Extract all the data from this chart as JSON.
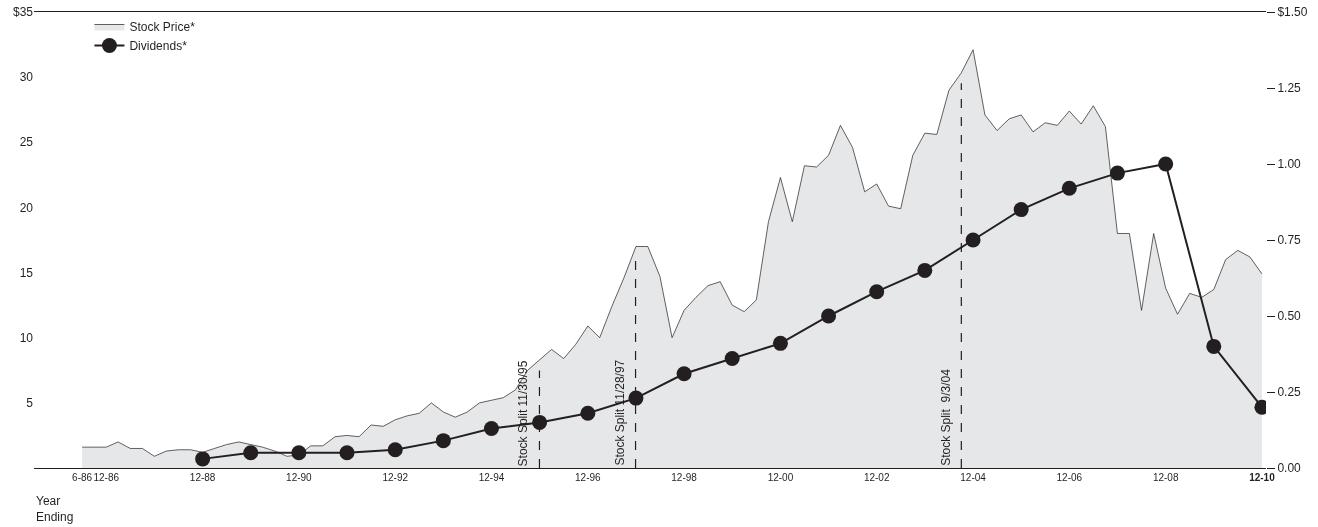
{
  "chart_data": {
    "type": "area",
    "xlabel": "Year Ending",
    "series": [
      {
        "name": "Stock Price*",
        "color": "#e6e7e8",
        "x": [
          "1986-06",
          "1986-09",
          "1986-12",
          "1987-03",
          "1987-06",
          "1987-09",
          "1987-12",
          "1988-03",
          "1988-06",
          "1988-09",
          "1988-12",
          "1989-03",
          "1989-06",
          "1989-09",
          "1989-12",
          "1990-03",
          "1990-06",
          "1990-09",
          "1990-12",
          "1991-03",
          "1991-06",
          "1991-09",
          "1991-12",
          "1992-03",
          "1992-06",
          "1992-09",
          "1992-12",
          "1993-03",
          "1993-06",
          "1993-09",
          "1993-12",
          "1994-03",
          "1994-06",
          "1994-09",
          "1994-12",
          "1995-03",
          "1995-06",
          "1995-09",
          "1995-12",
          "1996-03",
          "1996-06",
          "1996-09",
          "1996-12",
          "1997-03",
          "1997-06",
          "1997-09",
          "1997-12",
          "1998-03",
          "1998-06",
          "1998-09",
          "1998-12",
          "1999-03",
          "1999-06",
          "1999-09",
          "1999-12",
          "2000-03",
          "2000-06",
          "2000-09",
          "2000-12",
          "2001-03",
          "2001-06",
          "2001-09",
          "2001-12",
          "2002-03",
          "2002-06",
          "2002-09",
          "2002-12",
          "2003-03",
          "2003-06",
          "2003-09",
          "2003-12",
          "2004-03",
          "2004-06",
          "2004-09",
          "2004-12",
          "2005-03",
          "2005-06",
          "2005-09",
          "2005-12",
          "2006-03",
          "2006-06",
          "2006-09",
          "2006-12",
          "2007-03",
          "2007-06",
          "2007-09",
          "2007-12",
          "2008-03",
          "2008-06",
          "2008-09",
          "2008-12",
          "2009-03",
          "2009-06",
          "2009-09",
          "2009-12",
          "2010-03",
          "2010-06",
          "2010-09",
          "2010-12"
        ],
        "values": [
          1.6,
          1.6,
          1.6,
          2.0,
          1.5,
          1.5,
          0.9,
          1.3,
          1.4,
          1.4,
          1.2,
          1.5,
          1.8,
          2.0,
          1.8,
          1.6,
          1.3,
          0.9,
          1.0,
          1.7,
          1.7,
          2.4,
          2.5,
          2.4,
          3.3,
          3.2,
          3.7,
          4.0,
          4.2,
          5.0,
          4.3,
          3.9,
          4.3,
          5.0,
          5.2,
          5.4,
          6.0,
          7.5,
          8.3,
          9.1,
          8.4,
          9.5,
          10.9,
          10.0,
          12.4,
          14.6,
          17.0,
          17.0,
          14.7,
          10.0,
          12.1,
          13.1,
          14.0,
          14.3,
          12.5,
          12.0,
          12.9,
          18.9,
          22.3,
          18.9,
          23.2,
          23.1,
          24.0,
          26.3,
          24.6,
          21.2,
          21.8,
          20.1,
          19.9,
          24.0,
          25.7,
          25.6,
          29.0,
          30.3,
          32.1,
          27.1,
          25.9,
          26.8,
          27.1,
          25.8,
          26.5,
          26.3,
          27.4,
          26.4,
          27.8,
          26.2,
          18.0,
          18.0,
          12.1,
          18.0,
          13.8,
          11.8,
          13.4,
          13.1,
          13.7,
          16.0,
          16.7,
          16.2,
          14.9
        ]
      },
      {
        "name": "Dividends*",
        "type": "line",
        "marker": "circle",
        "axis": "y2",
        "color": "#231f20",
        "x": [
          "1988-12",
          "1989-12",
          "1990-12",
          "1991-12",
          "1992-12",
          "1993-12",
          "1994-12",
          "1995-12",
          "1996-12",
          "1997-12",
          "1998-12",
          "1999-12",
          "2000-12",
          "2001-12",
          "2002-12",
          "2003-12",
          "2004-12",
          "2005-12",
          "2006-12",
          "2007-12",
          "2008-12",
          "2009-12",
          "2010-12"
        ],
        "values": [
          0.03,
          0.05,
          0.05,
          0.05,
          0.06,
          0.09,
          0.13,
          0.15,
          0.18,
          0.23,
          0.31,
          0.36,
          0.41,
          0.5,
          0.58,
          0.65,
          0.75,
          0.85,
          0.92,
          0.97,
          1.0,
          0.4,
          0.2
        ]
      }
    ],
    "xlim": [
      "1985-06",
      "2011-01"
    ],
    "xticks": [
      {
        "value": "1986-06",
        "label": "6-86"
      },
      {
        "value": "1986-12",
        "label": "12-86"
      },
      {
        "value": "1988-12",
        "label": "12-88"
      },
      {
        "value": "1990-12",
        "label": "12-90"
      },
      {
        "value": "1992-12",
        "label": "12-92"
      },
      {
        "value": "1994-12",
        "label": "12-94"
      },
      {
        "value": "1996-12",
        "label": "12-96"
      },
      {
        "value": "1998-12",
        "label": "12-98"
      },
      {
        "value": "2000-12",
        "label": "12-00"
      },
      {
        "value": "2002-12",
        "label": "12-02"
      },
      {
        "value": "2004-12",
        "label": "12-04"
      },
      {
        "value": "2006-12",
        "label": "12-06"
      },
      {
        "value": "2008-12",
        "label": "12-08"
      },
      {
        "value": "2010-12",
        "label": "12-10"
      }
    ],
    "ylim": [
      0,
      35
    ],
    "yticks": [
      5,
      10,
      15,
      20,
      25,
      30,
      {
        "value": 35,
        "label": "$35"
      }
    ],
    "y2lim": [
      0,
      1.5
    ],
    "y2ticks": [
      {
        "value": 0,
        "label": "0.00"
      },
      {
        "value": 0.25,
        "label": "0.25"
      },
      {
        "value": 0.5,
        "label": "0.50"
      },
      {
        "value": 0.75,
        "label": "0.75"
      },
      {
        "value": 1,
        "label": "1.00"
      },
      {
        "value": 1.25,
        "label": "1.25"
      },
      {
        "value": 1.5,
        "label": "$1.50"
      }
    ],
    "ref_lines": [
      {
        "axis": "x",
        "value": "1995-11-30",
        "label": "Stock Split 11/30/95",
        "line_style": "dashed",
        "color": "#231f20"
      },
      {
        "axis": "x",
        "value": "1997-11-28",
        "label": "Stock Split 11/28/97",
        "line_style": "dashed",
        "color": "#231f20"
      },
      {
        "axis": "x",
        "value": "2004-09-03",
        "label": "Stock Split  9/3/04",
        "line_style": "dashed",
        "color": "#231f20"
      }
    ],
    "grid": false,
    "legend": "top left",
    "line_style": "solid"
  }
}
